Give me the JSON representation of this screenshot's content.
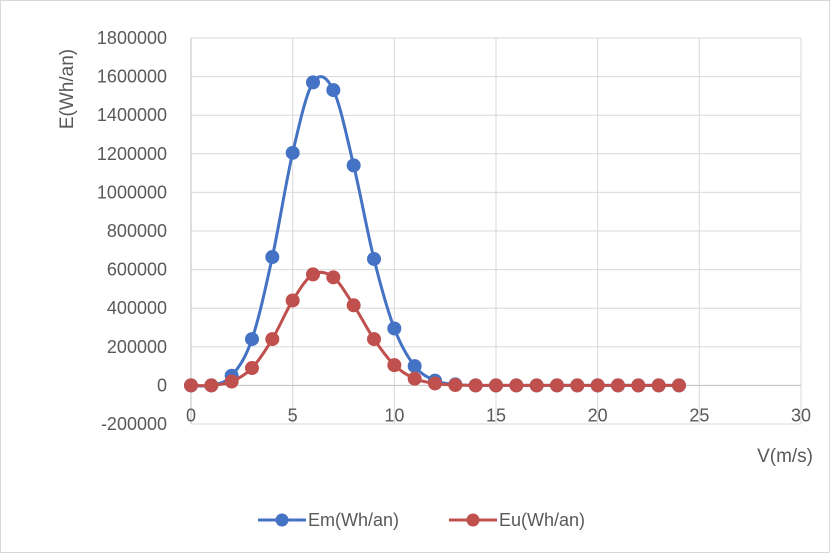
{
  "chart_data": {
    "type": "scatter",
    "title": "",
    "xlabel": "V(m/s)",
    "ylabel": "E(Wh/an)",
    "xlim": [
      0,
      30
    ],
    "ylim": [
      -200000,
      1800000
    ],
    "x_ticks": [
      0,
      5,
      10,
      15,
      20,
      25,
      30
    ],
    "x_tick_labels": [
      "0",
      "5",
      "10",
      "15",
      "20",
      "25",
      "30"
    ],
    "y_ticks": [
      -200000,
      0,
      200000,
      400000,
      600000,
      800000,
      1000000,
      1200000,
      1400000,
      1600000,
      1800000
    ],
    "y_tick_labels": [
      "-200000",
      "0",
      "200000",
      "400000",
      "600000",
      "800000",
      "1000000",
      "1200000",
      "1400000",
      "1600000",
      "1800000"
    ],
    "grid": true,
    "smooth_lines": true,
    "markers": true,
    "legend_position": "bottom",
    "x": [
      0,
      1,
      2,
      3,
      4,
      5,
      6,
      7,
      8,
      9,
      10,
      11,
      12,
      13,
      14,
      15,
      16,
      17,
      18,
      19,
      20,
      21,
      22,
      23,
      24
    ],
    "series": [
      {
        "name": "Em(Wh/an)",
        "color": "#4472c4",
        "values": [
          0,
          0,
          50000,
          240000,
          665000,
          1205000,
          1570000,
          1530000,
          1140000,
          655000,
          295000,
          100000,
          25000,
          5000,
          0,
          0,
          0,
          0,
          0,
          0,
          0,
          0,
          0,
          0,
          0
        ]
      },
      {
        "name": "Eu(Wh/an)",
        "color": "#c0504d",
        "values": [
          0,
          0,
          20000,
          90000,
          240000,
          440000,
          575000,
          560000,
          415000,
          240000,
          105000,
          35000,
          10000,
          2000,
          0,
          0,
          0,
          0,
          0,
          0,
          0,
          0,
          0,
          0,
          0
        ]
      }
    ],
    "colors": {
      "grid": "#d9d9d9",
      "axis": "#bfbfbf",
      "text": "#595959"
    }
  }
}
